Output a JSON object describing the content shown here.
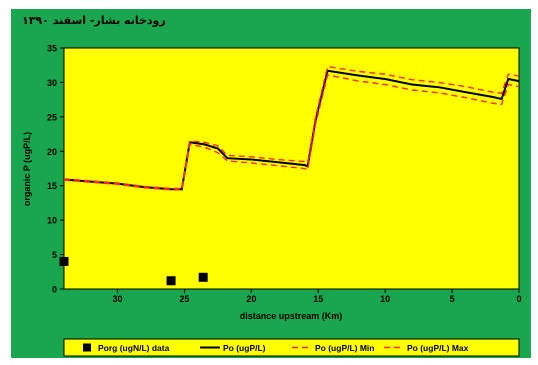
{
  "chart_data": {
    "type": "line",
    "title": "رودخانه بشار- اسفند ۱۳۹۰",
    "xlabel": "distance upstream (Km)",
    "ylabel": "organic P (ugP/L)",
    "xlim": [
      34,
      0
    ],
    "ylim": [
      0,
      35
    ],
    "x_ticks": [
      30,
      25,
      20,
      15,
      10,
      5,
      0
    ],
    "y_ticks": [
      0,
      5,
      10,
      15,
      20,
      25,
      30,
      35
    ],
    "legend_position": "bottom",
    "colors": {
      "background": "#1aa64e",
      "plot_area": "#ffff00",
      "model": "#000000",
      "bounds": "#ff2a2a",
      "data": "#000000"
    },
    "series": [
      {
        "name": "Porg (ugN/L) data",
        "kind": "scatter",
        "points": [
          [
            34,
            4.0
          ],
          [
            26,
            1.2
          ],
          [
            23.6,
            1.7
          ]
        ]
      },
      {
        "name": "Po (ugP/L)",
        "kind": "line",
        "points": [
          [
            34,
            15.9
          ],
          [
            32,
            15.6
          ],
          [
            30,
            15.3
          ],
          [
            28,
            14.8
          ],
          [
            26,
            14.5
          ],
          [
            25.2,
            14.5
          ],
          [
            24.6,
            21.3
          ],
          [
            23.5,
            21.0
          ],
          [
            22.5,
            20.4
          ],
          [
            21.8,
            19.0
          ],
          [
            20,
            18.8
          ],
          [
            18,
            18.4
          ],
          [
            16,
            18.0
          ],
          [
            15.8,
            17.8
          ],
          [
            15.2,
            24.5
          ],
          [
            14.3,
            31.7
          ],
          [
            12,
            31.0
          ],
          [
            10,
            30.5
          ],
          [
            8,
            29.7
          ],
          [
            6,
            29.3
          ],
          [
            4,
            28.6
          ],
          [
            2,
            27.9
          ],
          [
            1.3,
            27.6
          ],
          [
            0.8,
            30.5
          ],
          [
            0,
            30.2
          ]
        ]
      },
      {
        "name": "Po (ugP/L) Min",
        "kind": "dashed",
        "points": [
          [
            34,
            15.8
          ],
          [
            32,
            15.5
          ],
          [
            30,
            15.2
          ],
          [
            28,
            14.7
          ],
          [
            26,
            14.4
          ],
          [
            25.2,
            14.4
          ],
          [
            24.6,
            21.0
          ],
          [
            23.5,
            20.6
          ],
          [
            22.5,
            19.8
          ],
          [
            21.8,
            18.6
          ],
          [
            20,
            18.3
          ],
          [
            18,
            17.9
          ],
          [
            16,
            17.5
          ],
          [
            15.8,
            17.3
          ],
          [
            15.2,
            24.0
          ],
          [
            14.3,
            31.1
          ],
          [
            12,
            30.2
          ],
          [
            10,
            29.7
          ],
          [
            8,
            28.9
          ],
          [
            6,
            28.5
          ],
          [
            4,
            27.8
          ],
          [
            2,
            27.0
          ],
          [
            1.3,
            26.8
          ],
          [
            0.8,
            29.7
          ],
          [
            0,
            29.4
          ]
        ]
      },
      {
        "name": "Po (ugP/L) Max",
        "kind": "dashed",
        "points": [
          [
            34,
            16.0
          ],
          [
            32,
            15.7
          ],
          [
            30,
            15.4
          ],
          [
            28,
            14.9
          ],
          [
            26,
            14.6
          ],
          [
            25.2,
            14.6
          ],
          [
            24.6,
            21.5
          ],
          [
            23.5,
            21.3
          ],
          [
            22.5,
            20.8
          ],
          [
            21.8,
            19.4
          ],
          [
            20,
            19.2
          ],
          [
            18,
            18.8
          ],
          [
            16,
            18.5
          ],
          [
            15.8,
            18.3
          ],
          [
            15.2,
            25.0
          ],
          [
            14.3,
            32.3
          ],
          [
            12,
            31.6
          ],
          [
            10,
            31.2
          ],
          [
            8,
            30.4
          ],
          [
            6,
            30.0
          ],
          [
            4,
            29.4
          ],
          [
            2,
            28.6
          ],
          [
            1.3,
            28.4
          ],
          [
            0.8,
            31.2
          ],
          [
            0,
            30.9
          ]
        ]
      }
    ]
  }
}
